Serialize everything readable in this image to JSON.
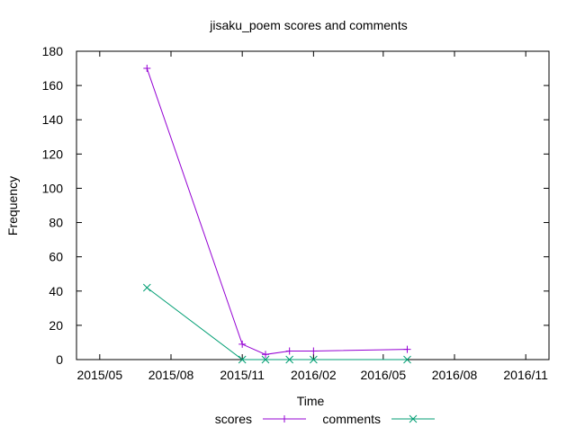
{
  "chart_data": {
    "type": "line",
    "title": "jisaku_poem scores and comments",
    "xlabel": "Time",
    "ylabel": "Frequency",
    "ylim": [
      0,
      180
    ],
    "yticks": [
      0,
      20,
      40,
      60,
      80,
      100,
      120,
      140,
      160,
      180
    ],
    "xlim": [
      "2015-04-01",
      "2016-12-01"
    ],
    "xticks": [
      {
        "label": "2015/05",
        "date": "2015-05-01"
      },
      {
        "label": "2015/08",
        "date": "2015-08-01"
      },
      {
        "label": "2015/11",
        "date": "2015-11-01"
      },
      {
        "label": "2016/02",
        "date": "2016-02-01"
      },
      {
        "label": "2016/05",
        "date": "2016-05-01"
      },
      {
        "label": "2016/08",
        "date": "2016-08-01"
      },
      {
        "label": "2016/11",
        "date": "2016-11-01"
      }
    ],
    "grid": false,
    "legend_position": "bottom-center",
    "series": [
      {
        "name": "scores",
        "color": "#9400d3",
        "marker": "plus",
        "points": [
          {
            "x": "2015-07-01",
            "y": 170
          },
          {
            "x": "2015-11-01",
            "y": 9
          },
          {
            "x": "2015-12-01",
            "y": 3
          },
          {
            "x": "2016-01-01",
            "y": 5
          },
          {
            "x": "2016-02-01",
            "y": 5
          },
          {
            "x": "2016-06-01",
            "y": 6
          }
        ]
      },
      {
        "name": "comments",
        "color": "#009e73",
        "marker": "cross",
        "points": [
          {
            "x": "2015-07-01",
            "y": 42
          },
          {
            "x": "2015-11-01",
            "y": 0
          },
          {
            "x": "2015-12-01",
            "y": 0
          },
          {
            "x": "2016-01-01",
            "y": 0
          },
          {
            "x": "2016-02-01",
            "y": 0
          },
          {
            "x": "2016-06-01",
            "y": 0
          }
        ]
      }
    ]
  }
}
